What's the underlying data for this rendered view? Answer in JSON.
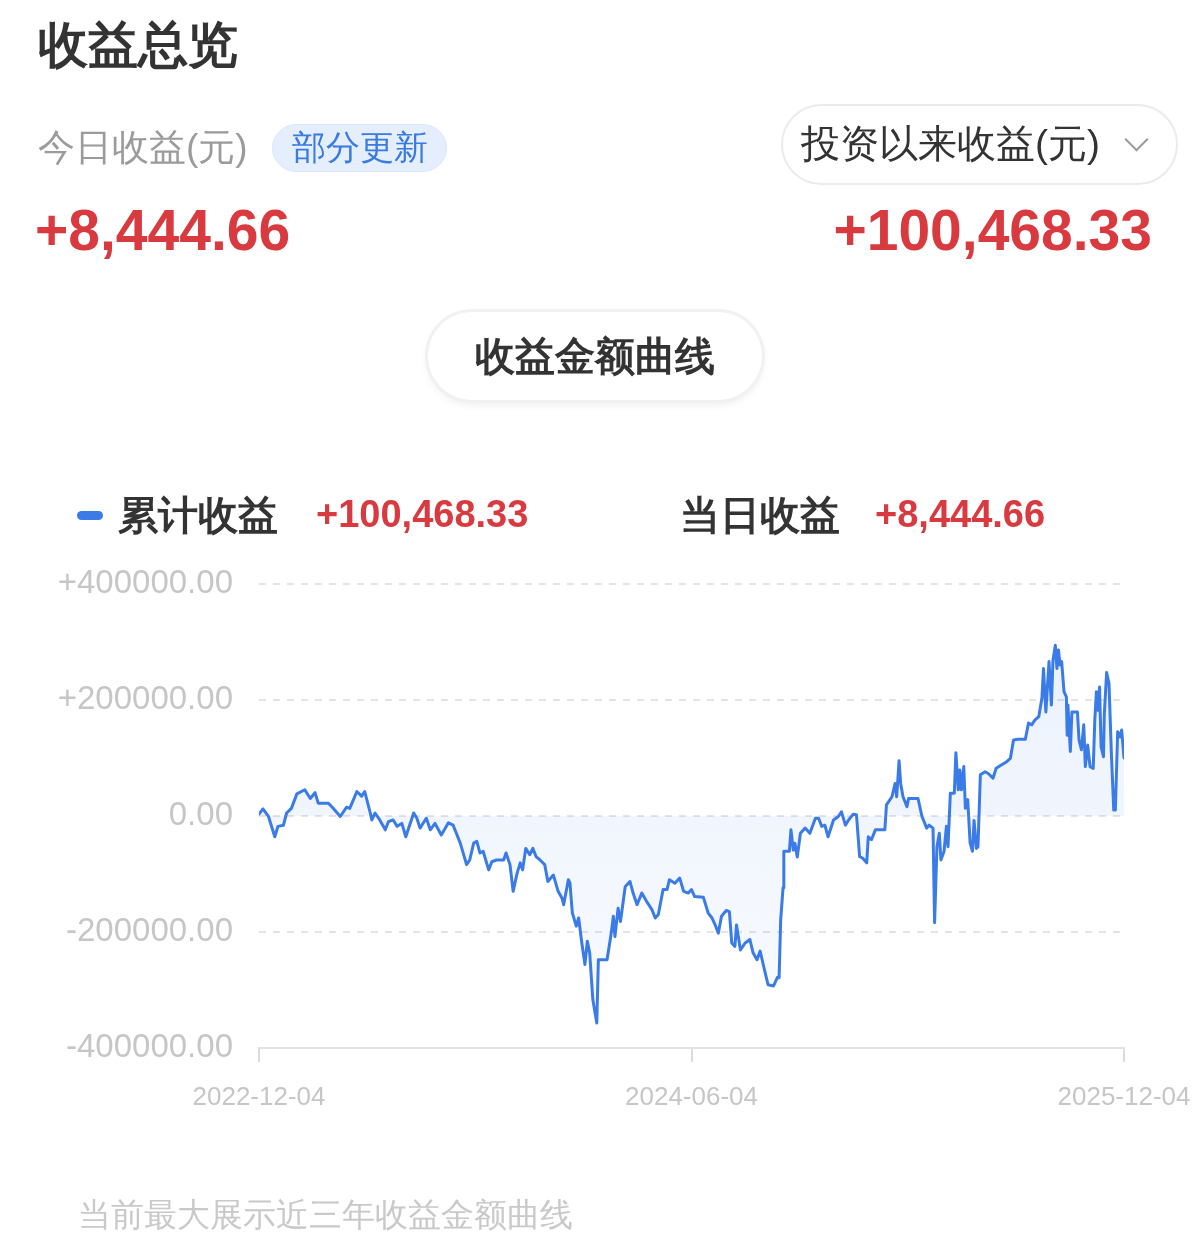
{
  "chart_data": {
    "type": "area",
    "title": "收益总览",
    "annotations": [
      "今日收益(元)",
      "部分更新",
      "+8,444.66",
      "投资以来收益(元)",
      "+100,468.33",
      "收益金额曲线",
      "+100,468.33",
      "当日收益",
      "+8,444.66",
      "当前最大展示近三年收益金额曲线"
    ],
    "x": [
      "2022-12-04",
      "2022-12-09",
      "2022-12-16",
      "2022-12-24",
      "2022-12-28",
      "2023-01-04",
      "2023-01-08",
      "2023-01-14",
      "2023-01-21",
      "2023-01-31",
      "2023-02-07",
      "2023-02-13",
      "2023-02-17",
      "2023-03-02",
      "2023-03-08",
      "2023-03-17",
      "2023-03-25",
      "2023-03-29",
      "2023-04-07",
      "2023-04-13",
      "2023-04-17",
      "2023-04-24",
      "2023-04-26",
      "2023-04-30",
      "2023-05-06",
      "2023-05-13",
      "2023-05-17",
      "2023-05-23",
      "2023-05-28",
      "2023-06-03",
      "2023-06-08",
      "2023-06-18",
      "2023-06-22",
      "2023-06-26",
      "2023-07-04",
      "2023-07-09",
      "2023-07-15",
      "2023-07-23",
      "2023-08-01",
      "2023-08-07",
      "2023-08-16",
      "2023-08-24",
      "2023-08-28",
      "2023-09-02",
      "2023-09-06",
      "2023-09-10",
      "2023-09-14",
      "2023-09-21",
      "2023-09-25",
      "2023-10-01",
      "2023-10-10",
      "2023-10-13",
      "2023-10-18",
      "2023-10-22",
      "2023-10-27",
      "2023-10-31",
      "2023-11-03",
      "2023-11-07",
      "2023-11-12",
      "2023-11-16",
      "2023-11-20",
      "2023-11-25",
      "2023-12-01",
      "2023-12-05",
      "2023-12-12",
      "2023-12-18",
      "2023-12-23",
      "2023-12-25",
      "2023-12-31",
      "2024-01-02",
      "2024-01-05",
      "2024-01-10",
      "2024-01-13",
      "2024-01-17",
      "2024-01-21",
      "2024-01-24",
      "2024-01-27",
      "2024-01-31",
      "2024-02-05",
      "2024-02-07",
      "2024-02-18",
      "2024-02-23",
      "2024-02-26",
      "2024-02-28",
      "2024-03-03",
      "2024-03-06",
      "2024-03-12",
      "2024-03-18",
      "2024-03-22",
      "2024-03-27",
      "2024-04-02",
      "2024-04-08",
      "2024-04-15",
      "2024-04-19",
      "2024-04-23",
      "2024-04-29",
      "2024-05-04",
      "2024-05-07",
      "2024-05-14",
      "2024-05-20",
      "2024-05-25",
      "2024-05-31",
      "2024-06-04",
      "2024-06-08",
      "2024-06-19",
      "2024-06-25",
      "2024-06-30",
      "2024-07-04",
      "2024-07-08",
      "2024-07-12",
      "2024-07-18",
      "2024-07-22",
      "2024-07-25",
      "2024-07-29",
      "2024-07-31",
      "2024-08-05",
      "2024-08-11",
      "2024-08-17",
      "2024-08-21",
      "2024-08-26",
      "2024-08-30",
      "2024-09-03",
      "2024-09-09",
      "2024-09-16",
      "2024-09-21",
      "2024-09-23",
      "2024-09-25",
      "2024-09-28",
      "2024-09-29",
      "2024-10-06",
      "2024-10-08",
      "2024-10-11",
      "2024-10-13",
      "2024-10-16",
      "2024-10-20",
      "2024-10-26",
      "2024-11-01",
      "2024-11-08",
      "2024-11-12",
      "2024-11-16",
      "2024-11-20",
      "2024-11-24",
      "2024-12-01",
      "2024-12-07",
      "2024-12-11",
      "2024-12-16",
      "2024-12-20",
      "2024-12-26",
      "2024-12-30",
      "2025-01-03",
      "2025-01-07",
      "2025-01-12",
      "2025-01-14",
      "2025-01-18",
      "2025-01-23",
      "2025-02-04",
      "2025-02-06",
      "2025-02-13",
      "2025-02-17",
      "2025-02-19",
      "2025-02-22",
      "2025-02-24",
      "2025-02-27",
      "2025-03-04",
      "2025-03-06",
      "2025-03-18",
      "2025-03-23",
      "2025-03-29",
      "2025-04-01",
      "2025-04-06",
      "2025-04-08",
      "2025-04-11",
      "2025-04-14",
      "2025-04-16",
      "2025-04-20",
      "2025-04-23",
      "2025-04-25",
      "2025-04-28",
      "2025-05-03",
      "2025-05-05",
      "2025-05-08",
      "2025-05-10",
      "2025-05-12",
      "2025-05-15",
      "2025-05-17",
      "2025-05-20",
      "2025-05-23",
      "2025-05-26",
      "2025-05-28",
      "2025-05-31",
      "2025-06-02",
      "2025-06-05",
      "2025-06-11",
      "2025-06-15",
      "2025-06-21",
      "2025-06-25",
      "2025-07-02",
      "2025-07-08",
      "2025-07-13",
      "2025-07-17",
      "2025-07-23",
      "2025-08-01",
      "2025-08-05",
      "2025-08-09",
      "2025-08-13",
      "2025-08-18",
      "2025-08-22",
      "2025-08-24",
      "2025-08-27",
      "2025-08-31",
      "2025-09-03",
      "2025-09-05",
      "2025-09-08",
      "2025-09-10",
      "2025-09-12",
      "2025-09-14",
      "2025-09-16",
      "2025-09-19",
      "2025-09-22",
      "2025-09-23",
      "2025-09-24",
      "2025-09-27",
      "2025-09-29",
      "2025-10-06",
      "2025-10-08",
      "2025-10-11",
      "2025-10-14",
      "2025-10-16",
      "2025-10-19",
      "2025-10-22",
      "2025-10-26",
      "2025-10-28",
      "2025-10-30",
      "2025-11-01",
      "2025-11-03",
      "2025-11-05",
      "2025-11-08",
      "2025-11-09",
      "2025-11-12",
      "2025-11-15",
      "2025-11-18",
      "2025-11-21",
      "2025-11-23",
      "2025-11-26",
      "2025-11-29",
      "2025-12-01",
      "2025-12-04"
    ],
    "series": [
      {
        "name": "累计收益",
        "color": "#3a7be8",
        "values": [
          3000,
          12000,
          -1000,
          -36000,
          -18000,
          -16000,
          5000,
          13000,
          38000,
          45000,
          30000,
          40000,
          22000,
          22000,
          13000,
          -1000,
          15000,
          13000,
          42000,
          34000,
          42000,
          5000,
          -7000,
          5000,
          -7000,
          -24000,
          -10000,
          -7000,
          -18000,
          -13000,
          -36000,
          5000,
          -4000,
          -21000,
          -4000,
          -24000,
          -13000,
          -33000,
          -12000,
          -16000,
          -47000,
          -84000,
          -76000,
          -47000,
          -44000,
          -64000,
          -61000,
          -93000,
          -79000,
          -76000,
          -76000,
          -64000,
          -84000,
          -130000,
          -99000,
          -81000,
          -93000,
          -56000,
          -67000,
          -56000,
          -70000,
          -76000,
          -84000,
          -113000,
          -102000,
          -130000,
          -142000,
          -153000,
          -110000,
          -116000,
          -167000,
          -190000,
          -176000,
          -219000,
          -256000,
          -216000,
          -236000,
          -317000,
          -357000,
          -248000,
          -248000,
          -205000,
          -173000,
          -208000,
          -159000,
          -182000,
          -122000,
          -113000,
          -133000,
          -153000,
          -133000,
          -147000,
          -162000,
          -176000,
          -170000,
          -127000,
          -127000,
          -110000,
          -116000,
          -107000,
          -130000,
          -133000,
          -127000,
          -139000,
          -140000,
          -167000,
          -176000,
          -188000,
          -202000,
          -173000,
          -163000,
          -165000,
          -219000,
          -225000,
          -188000,
          -231000,
          -219000,
          -213000,
          -236000,
          -248000,
          -233000,
          -257000,
          -291000,
          -293000,
          -278000,
          -279000,
          -179000,
          -124000,
          -61000,
          -61000,
          -24000,
          -59000,
          -47000,
          -71000,
          -30000,
          -21000,
          -30000,
          -4000,
          -4000,
          -18000,
          -16000,
          -36000,
          -7000,
          -1000,
          7000,
          -16000,
          -7000,
          3000,
          2000,
          -70000,
          -73000,
          -81000,
          -36000,
          -41000,
          -24000,
          -24000,
          19000,
          33000,
          56000,
          33000,
          95000,
          56000,
          33000,
          16000,
          30000,
          30000,
          -1000,
          -21000,
          -16000,
          -21000,
          -184000,
          -53000,
          -30000,
          -76000,
          -61000,
          -18000,
          -53000,
          39000,
          39000,
          109000,
          45000,
          79000,
          45000,
          85000,
          13000,
          28000,
          -47000,
          -61000,
          -8000,
          -56000,
          -53000,
          71000,
          76000,
          73000,
          65000,
          82000,
          88000,
          93000,
          99000,
          131000,
          132000,
          132000,
          160000,
          157000,
          165000,
          171000,
          203000,
          254000,
          179000,
          266000,
          191000,
          268000,
          294000,
          254000,
          286000,
          260000,
          266000,
          214000,
          205000,
          139000,
          191000,
          111000,
          179000,
          179000,
          131000,
          114000,
          157000,
          85000,
          122000,
          85000,
          82000,
          165000,
          214000,
          182000,
          222000,
          119000,
          102000,
          174000,
          247000,
          228000,
          108000,
          10000,
          10000,
          145000,
          136000,
          148000,
          100000
        ]
      }
    ],
    "xlim": [
      "2022-12-04",
      "2025-12-04"
    ],
    "xticks": [
      "2022-12-04",
      "2024-06-04",
      "2025-12-04"
    ],
    "ylim": [
      -400000,
      400000
    ],
    "yticks": [
      {
        "value": 400000,
        "label": "+400000.00"
      },
      {
        "value": 200000,
        "label": "+200000.00"
      },
      {
        "value": 0,
        "label": "0.00"
      },
      {
        "value": -200000,
        "label": "-200000.00"
      },
      {
        "value": -400000,
        "label": "-400000.00"
      }
    ],
    "grid": "y",
    "legend": "top left"
  }
}
